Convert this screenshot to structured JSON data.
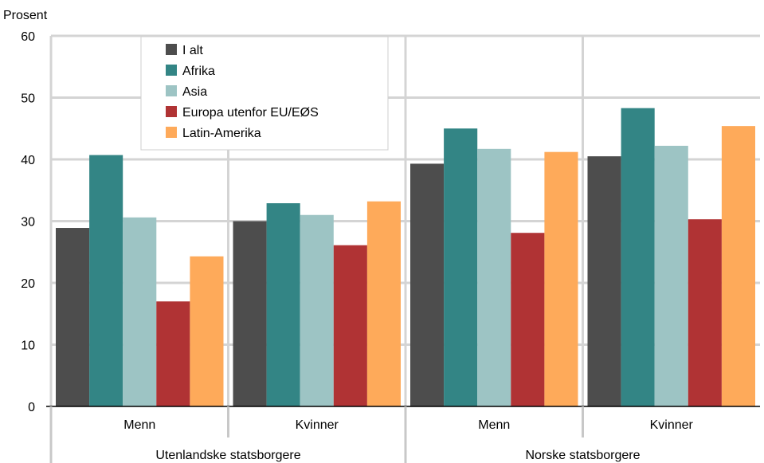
{
  "chart_data": {
    "type": "bar",
    "ylabel": "Prosent",
    "ylim": [
      0,
      60
    ],
    "yticks": [
      "0",
      "10",
      "20",
      "30",
      "40",
      "50",
      "60"
    ],
    "grid": true,
    "legend_position": "top-left",
    "groups": [
      {
        "label": "Utenlandske statsborgere",
        "subgroups": [
          "Menn",
          "Kvinner"
        ]
      },
      {
        "label": "Norske statsborgere",
        "subgroups": [
          "Menn",
          "Kvinner"
        ]
      }
    ],
    "categories": [
      "Menn",
      "Kvinner",
      "Menn",
      "Kvinner"
    ],
    "series": [
      {
        "name": "I alt",
        "color": "#4d4d4d",
        "values": [
          28.9,
          30.0,
          39.3,
          40.5
        ]
      },
      {
        "name": "Afrika",
        "color": "#338585",
        "values": [
          40.7,
          32.9,
          45.0,
          48.3
        ]
      },
      {
        "name": "Asia",
        "color": "#9dc4c4",
        "values": [
          30.6,
          31.0,
          41.7,
          42.2
        ]
      },
      {
        "name": "Europa utenfor EU/EØS",
        "color": "#b03334",
        "values": [
          17.0,
          26.1,
          28.1,
          30.3
        ]
      },
      {
        "name": "Latin-Amerika",
        "color": "#feaa5a",
        "values": [
          24.3,
          33.2,
          41.2,
          45.4
        ]
      }
    ]
  }
}
